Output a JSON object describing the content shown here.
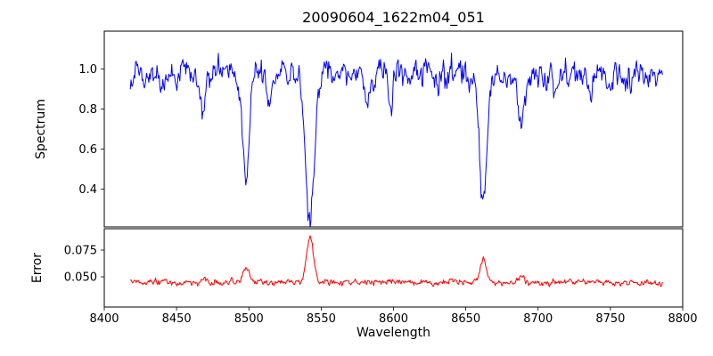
{
  "chart_data": {
    "type": "line",
    "title": "20090604_1622m04_051",
    "xlabel": "Wavelength",
    "xlim": [
      8400,
      8800
    ],
    "grid": false,
    "legend": "none",
    "background": "#ffffff",
    "axis_color": "#000000",
    "xticks": {
      "values": [
        8400,
        8450,
        8500,
        8550,
        8600,
        8650,
        8700,
        8750,
        8800
      ],
      "labels": [
        "8400",
        "8450",
        "8500",
        "8550",
        "8600",
        "8650",
        "8700",
        "8750",
        "8800"
      ]
    },
    "panels": [
      {
        "name": "spectrum",
        "ylabel": "Spectrum",
        "line_color": "#0000ff",
        "ylim": [
          0.21,
          1.19
        ],
        "yticks": {
          "values": [
            0.4,
            0.6,
            0.8,
            1.0
          ],
          "labels": [
            "0.4",
            "0.6",
            "0.8",
            "1.0"
          ]
        },
        "series": {
          "x_start": 8418,
          "x_end": 8786,
          "n_points": 720,
          "seed": 20090604,
          "baseline": 0.975,
          "noise_sigma": 0.03,
          "noise_ar": 0.55,
          "features": [
            {
              "center": 8498.0,
              "amplitude": -0.565,
              "width": 2.2
            },
            {
              "center": 8542.1,
              "amplitude": -0.7,
              "width": 3.2
            },
            {
              "center": 8662.1,
              "amplitude": -0.645,
              "width": 2.6
            },
            {
              "center": 8688.6,
              "amplitude": -0.24,
              "width": 2.0
            },
            {
              "center": 8468.5,
              "amplitude": -0.2,
              "width": 1.8
            },
            {
              "center": 8514.0,
              "amplitude": -0.15,
              "width": 1.6
            },
            {
              "center": 8582.0,
              "amplitude": -0.12,
              "width": 1.6
            },
            {
              "center": 8598.0,
              "amplitude": -0.12,
              "width": 1.6
            },
            {
              "center": 8713.0,
              "amplitude": -0.1,
              "width": 1.5
            },
            {
              "center": 8736.0,
              "amplitude": -0.1,
              "width": 1.5
            },
            {
              "center": 8440.0,
              "amplitude": -0.1,
              "width": 1.5
            }
          ]
        }
      },
      {
        "name": "error",
        "ylabel": "Error",
        "line_color": "#ff0000",
        "ylim": [
          0.0217,
          0.095
        ],
        "yticks": {
          "values": [
            0.05,
            0.075
          ],
          "labels": [
            "0.050",
            "0.075"
          ]
        },
        "series": {
          "x_start": 8418,
          "x_end": 8786,
          "n_points": 720,
          "seed": 51,
          "baseline": 0.0445,
          "noise_sigma": 0.0013,
          "noise_ar": 0.5,
          "features": [
            {
              "center": 8498.0,
              "amplitude": 0.0145,
              "width": 2.0
            },
            {
              "center": 8542.1,
              "amplitude": 0.043,
              "width": 2.4
            },
            {
              "center": 8662.1,
              "amplitude": 0.023,
              "width": 2.0
            },
            {
              "center": 8688.6,
              "amplitude": 0.005,
              "width": 1.8
            },
            {
              "center": 8468.5,
              "amplitude": 0.003,
              "width": 1.6
            }
          ]
        }
      }
    ]
  }
}
